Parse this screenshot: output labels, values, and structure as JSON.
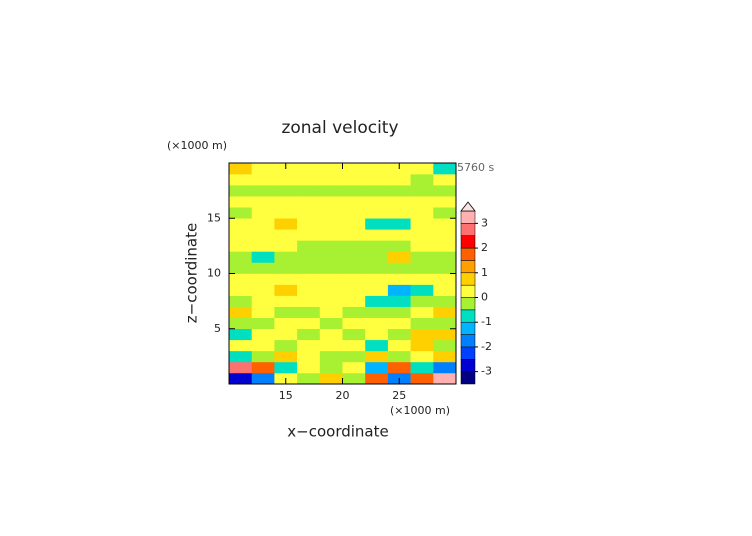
{
  "chart_data": {
    "type": "heatmap",
    "title": "zonal velocity",
    "x_label": "x−coordinate",
    "y_label": "z−coordinate",
    "x_unit": "(×1000 m)",
    "y_unit": "(×1000 m)",
    "annotation": "5760 s",
    "xlim": [
      10,
      30
    ],
    "ylim": [
      0,
      20
    ],
    "xticks": [
      15,
      20,
      25
    ],
    "yticks": [
      5,
      10,
      15
    ],
    "x": [
      11,
      13,
      15,
      17,
      19,
      21,
      23,
      25,
      27,
      29
    ],
    "y": [
      0.5,
      1.5,
      2.5,
      3.5,
      4.5,
      5.5,
      6.5,
      7.5,
      8.5,
      9.5,
      10.5,
      11.5,
      12.5,
      13.5,
      14.5,
      15.5,
      16.5,
      17.5,
      18.5,
      19.5
    ],
    "z": [
      [
        -3,
        -2,
        0.3,
        -0.5,
        0.5,
        -0.5,
        1.5,
        -2,
        1.5,
        3
      ],
      [
        2.5,
        1.5,
        -1,
        0.3,
        -0.3,
        0.3,
        -1.5,
        1.5,
        -1,
        -2
      ],
      [
        -1,
        -0.3,
        0.8,
        0.2,
        -0.3,
        -0.3,
        0.7,
        -0.5,
        0.3,
        0.5
      ],
      [
        0.3,
        0.3,
        -0.3,
        0.2,
        0.2,
        0.2,
        -0.6,
        0.2,
        0.6,
        -0.5
      ],
      [
        -0.8,
        0.3,
        0.2,
        -0.3,
        0.2,
        -0.3,
        0.2,
        -0.3,
        0.7,
        0.8
      ],
      [
        -0.3,
        -0.3,
        0.3,
        0.2,
        -0.3,
        0.2,
        0.2,
        0.3,
        -0.3,
        -0.3
      ],
      [
        0.7,
        0.2,
        -0.3,
        -0.3,
        0.2,
        -0.3,
        -0.3,
        -0.3,
        0.2,
        0.6
      ],
      [
        -0.3,
        0.2,
        0.3,
        0.2,
        0.2,
        0.2,
        -0.6,
        -0.8,
        -0.3,
        -0.2
      ],
      [
        0.2,
        0.3,
        0.8,
        0.3,
        0.2,
        0.2,
        0.2,
        -1.2,
        -0.6,
        0.2
      ],
      [
        0.2,
        0.2,
        0.2,
        0.2,
        0.2,
        0.2,
        0.2,
        0.2,
        0.2,
        0.2
      ],
      [
        -0.3,
        -0.3,
        -0.2,
        -0.3,
        -0.3,
        -0.3,
        -0.3,
        -0.2,
        -0.3,
        -0.3
      ],
      [
        -0.2,
        -0.7,
        -0.3,
        -0.2,
        -0.2,
        -0.2,
        -0.3,
        0.6,
        -0.3,
        -0.2
      ],
      [
        0.2,
        0.2,
        0.2,
        -0.2,
        -0.3,
        -0.2,
        -0.2,
        -0.2,
        0.2,
        0.2
      ],
      [
        0.2,
        0.2,
        0.2,
        0.2,
        0.2,
        0.2,
        0.2,
        0.2,
        0.2,
        0.2
      ],
      [
        0.2,
        0.3,
        0.8,
        0.3,
        0.2,
        0.2,
        -0.8,
        -0.6,
        0.2,
        0.2
      ],
      [
        -0.2,
        0.2,
        0.2,
        0.2,
        0.2,
        0.2,
        0.2,
        0.2,
        0.2,
        -0.2
      ],
      [
        0.2,
        0.2,
        0.2,
        0.2,
        0.2,
        0.2,
        0.2,
        0.2,
        0.2,
        0.2
      ],
      [
        -0.2,
        -0.3,
        -0.3,
        -0.3,
        -0.3,
        -0.3,
        -0.3,
        -0.3,
        -0.2,
        -0.2
      ],
      [
        0.2,
        0.2,
        0.2,
        0.2,
        0.2,
        0.2,
        0.2,
        0.2,
        -0.2,
        0.2
      ],
      [
        0.6,
        0.2,
        0.2,
        0.2,
        0.2,
        0.2,
        0.2,
        0.2,
        0.2,
        -1
      ]
    ],
    "colorbar": {
      "levels": [
        -3.5,
        -3,
        -2.5,
        -2,
        -1.5,
        -1,
        -0.5,
        0,
        0.5,
        1,
        1.5,
        2,
        2.5,
        3,
        3.5
      ],
      "colors": [
        "#000080",
        "#0000d0",
        "#0040ff",
        "#0080ff",
        "#00b4ff",
        "#00e0c0",
        "#a8f032",
        "#ffff40",
        "#ffd000",
        "#ffa000",
        "#ff6000",
        "#ff0000",
        "#ff7070",
        "#ffb0b0"
      ],
      "over_color": "#ffe0e0",
      "ticks": [
        -3,
        -2,
        -1,
        0,
        1,
        2,
        3
      ]
    }
  }
}
